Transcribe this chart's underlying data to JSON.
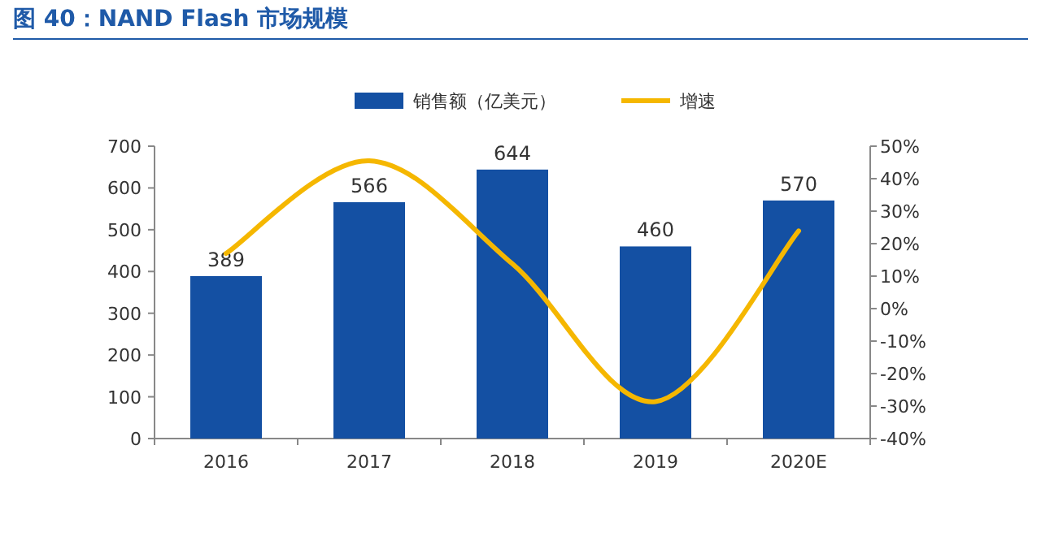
{
  "chart_data": {
    "type": "bar",
    "title": "图 40：NAND Flash 市场规模",
    "categories": [
      "2016",
      "2017",
      "2018",
      "2019",
      "2020E"
    ],
    "series": [
      {
        "name": "销售额（亿美元）",
        "color": "#1450a3",
        "values": [
          389,
          566,
          644,
          460,
          570
        ],
        "value_labels": [
          "389",
          "566",
          "644",
          "460",
          "570"
        ]
      },
      {
        "name": "增速",
        "type": "line",
        "color": "#f5b700",
        "axis": "y2",
        "values": [
          17,
          45.5,
          13.8,
          -28.6,
          23.9
        ]
      }
    ],
    "ylim": [
      0,
      700
    ],
    "yticks": [
      0,
      100,
      200,
      300,
      400,
      500,
      600,
      700
    ],
    "y2lim": [
      -40,
      50
    ],
    "y2ticks": [
      {
        "value": -40,
        "label": "-40%"
      },
      {
        "value": -30,
        "label": "-30%"
      },
      {
        "value": -20,
        "label": "-20%"
      },
      {
        "value": -10,
        "label": "-10%"
      },
      {
        "value": 0,
        "label": "0%"
      },
      {
        "value": 10,
        "label": "10%"
      },
      {
        "value": 20,
        "label": "20%"
      },
      {
        "value": 30,
        "label": "30%"
      },
      {
        "value": 40,
        "label": "40%"
      },
      {
        "value": 50,
        "label": "50%"
      }
    ],
    "legend": "top"
  }
}
